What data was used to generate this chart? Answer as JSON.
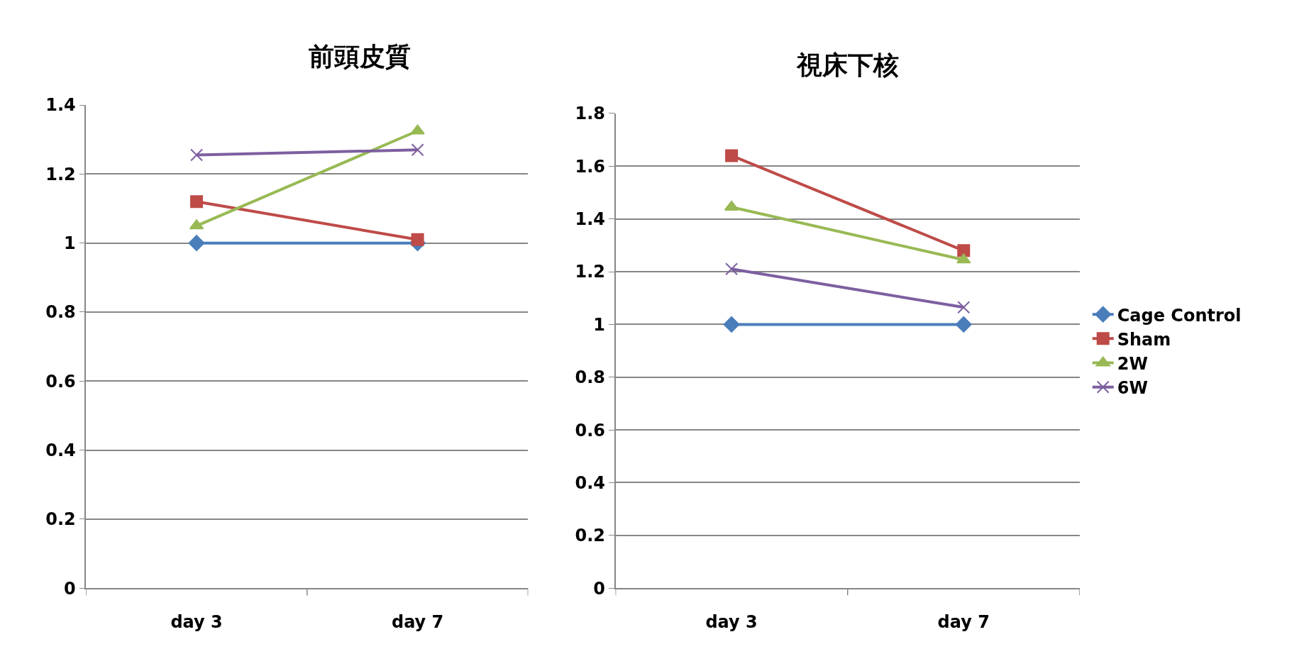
{
  "chart_data": [
    {
      "type": "line",
      "title": "前頭皮質",
      "categories": [
        "day 3",
        "day 7"
      ],
      "ylim": [
        0,
        1.4
      ],
      "yticks": [
        0,
        0.2,
        0.4,
        0.6,
        0.8,
        1,
        1.2,
        1.4
      ],
      "grid": "y",
      "legend": false,
      "series": [
        {
          "color": "#4a7ebb",
          "marker": "diamond",
          "values": [
            1,
            1
          ]
        },
        {
          "color": "#be4b48",
          "marker": "square",
          "values": [
            1.12,
            1.01
          ]
        },
        {
          "color": "#98b954",
          "marker": "triangle",
          "values": [
            1.05,
            1.325
          ]
        },
        {
          "color": "#7d5fa0",
          "marker": "cross",
          "values": [
            1.255,
            1.27
          ]
        }
      ]
    },
    {
      "type": "line",
      "title": "視床下核",
      "categories": [
        "day 3",
        "day 7"
      ],
      "ylim": [
        0,
        1.8
      ],
      "yticks": [
        0,
        0.2,
        0.4,
        0.6,
        0.8,
        1,
        1.2,
        1.4,
        1.6,
        1.8
      ],
      "grid": "y",
      "legend": "right",
      "series": [
        {
          "name": "Cage Control",
          "color": "#4a7ebb",
          "marker": "diamond",
          "values": [
            1,
            1
          ]
        },
        {
          "name": "Sham",
          "color": "#be4b48",
          "marker": "square",
          "values": [
            1.64,
            1.28
          ]
        },
        {
          "name": "2W",
          "color": "#98b954",
          "marker": "triangle",
          "values": [
            1.445,
            1.245
          ]
        },
        {
          "name": "6W",
          "color": "#7d5fa0",
          "marker": "cross",
          "values": [
            1.21,
            1.065
          ]
        }
      ]
    }
  ]
}
